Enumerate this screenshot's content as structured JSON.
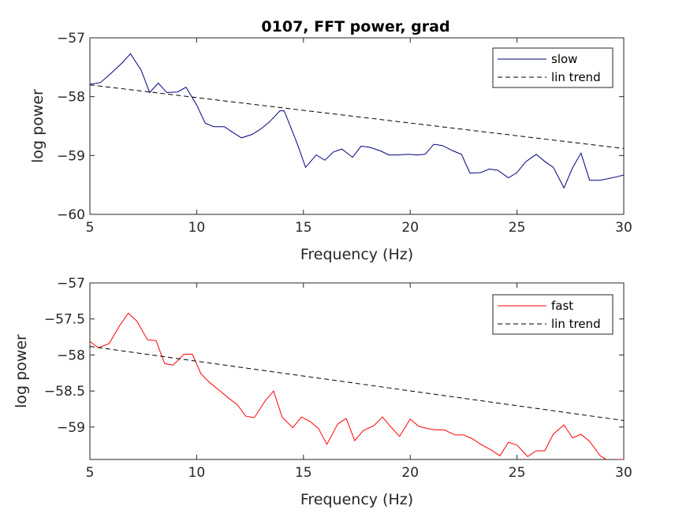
{
  "figure_title": "0107, FFT power, grad",
  "chart_data": [
    {
      "type": "line",
      "title": "0107, FFT power, grad",
      "xlabel": "Frequency (Hz)",
      "ylabel": "log power",
      "xlim": [
        5,
        30
      ],
      "ylim": [
        -60,
        -57
      ],
      "xticks": [
        5,
        10,
        15,
        20,
        25,
        30
      ],
      "yticks": [
        -60,
        -59,
        -58,
        -57
      ],
      "grid": false,
      "legend_position": "top-right",
      "series": [
        {
          "name": "slow",
          "color": "#00007f",
          "style": "solid",
          "x": [
            5.0,
            5.5,
            6.0,
            6.5,
            6.9,
            7.4,
            7.8,
            8.2,
            8.6,
            9.1,
            9.5,
            10.0,
            10.4,
            10.8,
            11.3,
            11.7,
            12.1,
            12.6,
            13.0,
            13.4,
            13.9,
            14.1,
            14.7,
            15.1,
            15.6,
            16.0,
            16.4,
            16.8,
            17.3,
            17.7,
            18.1,
            18.6,
            19.0,
            19.4,
            19.9,
            20.3,
            20.7,
            21.1,
            21.5,
            22.0,
            22.4,
            22.8,
            23.3,
            23.7,
            24.1,
            24.6,
            25.0,
            25.4,
            25.9,
            26.3,
            26.7,
            27.2,
            27.6,
            28.0,
            28.4,
            28.9,
            29.3,
            29.7,
            30.0
          ],
          "y": [
            -57.79,
            -57.76,
            -57.6,
            -57.43,
            -57.27,
            -57.55,
            -57.93,
            -57.77,
            -57.93,
            -57.92,
            -57.84,
            -58.14,
            -58.45,
            -58.51,
            -58.51,
            -58.61,
            -58.7,
            -58.64,
            -58.55,
            -58.43,
            -58.24,
            -58.24,
            -58.79,
            -59.2,
            -58.99,
            -59.08,
            -58.94,
            -58.89,
            -59.03,
            -58.84,
            -58.86,
            -58.92,
            -58.99,
            -58.99,
            -58.98,
            -58.99,
            -58.98,
            -58.81,
            -58.83,
            -58.92,
            -58.98,
            -59.3,
            -59.29,
            -59.23,
            -59.25,
            -59.38,
            -59.29,
            -59.11,
            -58.98,
            -59.1,
            -59.2,
            -59.55,
            -59.21,
            -58.96,
            -59.42,
            -59.42,
            -59.39,
            -59.36,
            -59.33
          ]
        },
        {
          "name": "lin trend",
          "color": "#000000",
          "style": "dashed",
          "x": [
            5,
            30
          ],
          "y": [
            -57.8,
            -58.88
          ]
        }
      ]
    },
    {
      "type": "line",
      "xlabel": "Frequency (Hz)",
      "ylabel": "log power",
      "xlim": [
        5,
        30
      ],
      "ylim": [
        -59.45,
        -57.0
      ],
      "xticks": [
        5,
        10,
        15,
        20,
        25,
        30
      ],
      "yticks": [
        -59,
        -58.5,
        -58,
        -57.5,
        -57
      ],
      "grid": false,
      "legend_position": "top-right",
      "series": [
        {
          "name": "fast",
          "color": "#ff0000",
          "style": "solid",
          "x": [
            5.0,
            5.4,
            5.9,
            6.4,
            6.8,
            7.2,
            7.7,
            8.1,
            8.5,
            8.9,
            9.4,
            9.8,
            10.2,
            10.6,
            11.1,
            11.5,
            11.9,
            12.3,
            12.7,
            13.2,
            13.6,
            14.0,
            14.5,
            14.9,
            15.3,
            15.7,
            16.1,
            16.6,
            17.0,
            17.4,
            17.8,
            18.3,
            18.7,
            19.1,
            19.5,
            20.0,
            20.4,
            20.8,
            21.2,
            21.6,
            22.1,
            22.5,
            22.9,
            23.3,
            23.8,
            24.2,
            24.6,
            25.0,
            25.5,
            25.9,
            26.3,
            26.7,
            27.2,
            27.6,
            28.0,
            28.4,
            28.9,
            29.3,
            29.7,
            30.0
          ],
          "y": [
            -57.81,
            -57.9,
            -57.84,
            -57.59,
            -57.42,
            -57.53,
            -57.79,
            -57.8,
            -58.12,
            -58.14,
            -57.99,
            -57.99,
            -58.26,
            -58.38,
            -58.5,
            -58.6,
            -58.69,
            -58.85,
            -58.87,
            -58.64,
            -58.5,
            -58.86,
            -59.01,
            -58.86,
            -58.92,
            -59.02,
            -59.24,
            -58.96,
            -58.88,
            -59.19,
            -59.05,
            -58.98,
            -58.86,
            -59.0,
            -59.13,
            -58.89,
            -58.99,
            -59.02,
            -59.04,
            -59.04,
            -59.11,
            -59.11,
            -59.16,
            -59.24,
            -59.32,
            -59.4,
            -59.21,
            -59.25,
            -59.41,
            -59.33,
            -59.33,
            -59.1,
            -58.97,
            -59.15,
            -59.1,
            -59.2,
            -59.4,
            -59.47,
            -59.45,
            -59.45
          ]
        },
        {
          "name": "lin trend",
          "color": "#000000",
          "style": "dashed",
          "x": [
            5,
            30
          ],
          "y": [
            -57.88,
            -58.91
          ]
        }
      ]
    }
  ]
}
